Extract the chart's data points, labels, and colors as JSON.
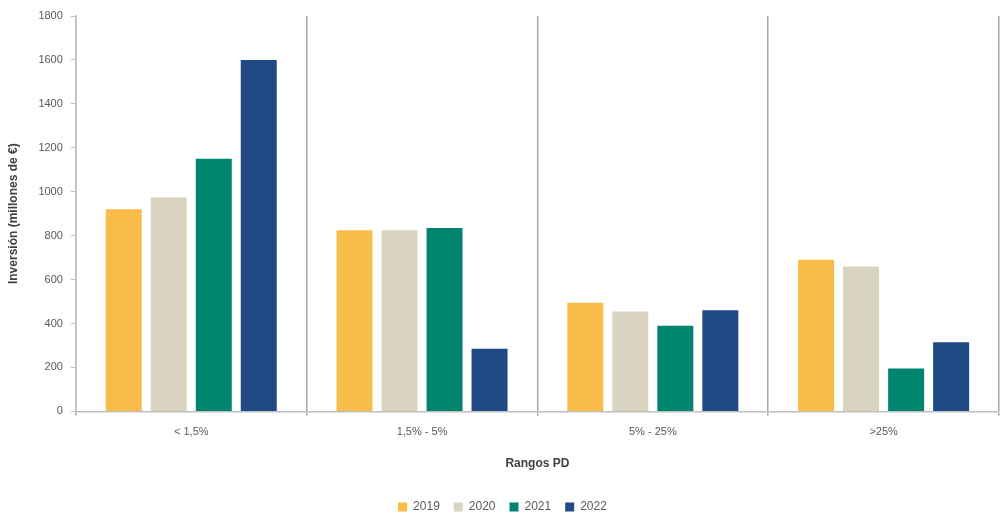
{
  "chart_data": {
    "type": "bar",
    "categories": [
      "< 1,5%",
      "1,5% - 5%",
      "5% - 25%",
      ">25%"
    ],
    "xlabel": "Rangos PD",
    "ylabel": "Inversión (millones de €)",
    "ylim": [
      0,
      1800
    ],
    "yticks": [
      0,
      200,
      400,
      600,
      800,
      1000,
      1200,
      1400,
      1600,
      1800
    ],
    "grid": "x",
    "legend": "bottom",
    "series": [
      {
        "name": "2019",
        "color": "#f8bc4a",
        "values": [
          920,
          825,
          495,
          690
        ]
      },
      {
        "name": "2020",
        "color": "#d9d4bf",
        "values": [
          975,
          825,
          455,
          660
        ]
      },
      {
        "name": "2021",
        "color": "#00856f",
        "values": [
          1150,
          835,
          390,
          195
        ]
      },
      {
        "name": "2022",
        "color": "#1f4a84",
        "values": [
          1600,
          285,
          460,
          315
        ]
      }
    ]
  }
}
